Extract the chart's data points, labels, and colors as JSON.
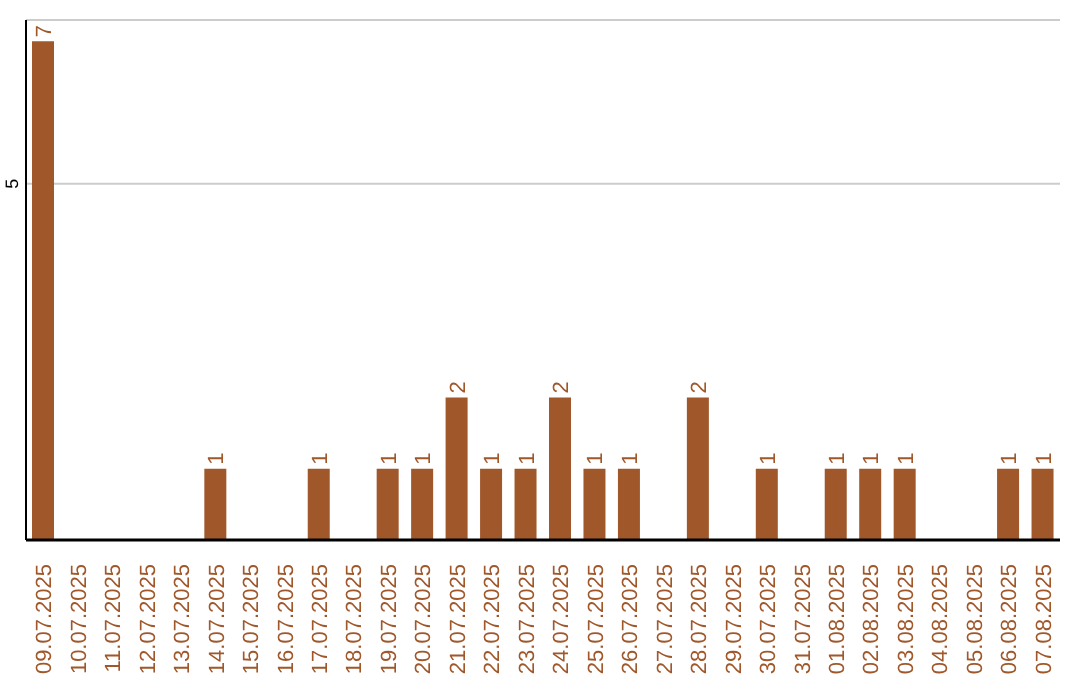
{
  "chart_data": {
    "type": "bar",
    "categories": [
      "09.07.2025",
      "10.07.2025",
      "11.07.2025",
      "12.07.2025",
      "13.07.2025",
      "14.07.2025",
      "15.07.2025",
      "16.07.2025",
      "17.07.2025",
      "18.07.2025",
      "19.07.2025",
      "20.07.2025",
      "21.07.2025",
      "22.07.2025",
      "23.07.2025",
      "24.07.2025",
      "25.07.2025",
      "26.07.2025",
      "27.07.2025",
      "28.07.2025",
      "29.07.2025",
      "30.07.2025",
      "31.07.2025",
      "01.08.2025",
      "02.08.2025",
      "03.08.2025",
      "04.08.2025",
      "05.08.2025",
      "06.08.2025",
      "07.08.2025"
    ],
    "values": [
      7,
      0,
      0,
      0,
      0,
      1,
      0,
      0,
      1,
      0,
      1,
      1,
      2,
      1,
      1,
      2,
      1,
      1,
      0,
      2,
      0,
      1,
      0,
      1,
      1,
      1,
      0,
      0,
      1,
      1
    ],
    "value_labels": [
      "7",
      null,
      null,
      null,
      null,
      "1",
      null,
      null,
      "1",
      null,
      "1",
      "1",
      "2",
      "1",
      "1",
      "2",
      "1",
      "1",
      null,
      "2",
      null,
      "1",
      null,
      "1",
      "1",
      "1",
      null,
      null,
      "1",
      "1"
    ],
    "color": "#a0572a",
    "ylim": [
      0,
      7.3
    ],
    "yticks": [
      5
    ],
    "grid": "y"
  }
}
